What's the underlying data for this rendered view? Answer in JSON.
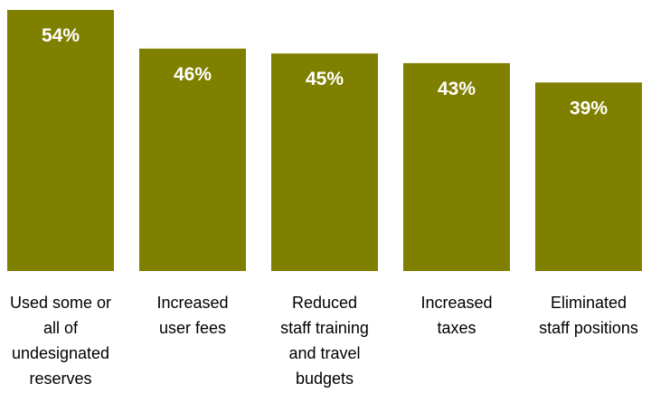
{
  "chart_data": {
    "type": "bar",
    "categories": [
      [
        "Used some or",
        "all of",
        "undesignated",
        "reserves"
      ],
      [
        "Increased",
        "user fees"
      ],
      [
        "Reduced",
        "staff training",
        "and travel",
        "budgets"
      ],
      [
        "Increased",
        "taxes"
      ],
      [
        "Eliminated",
        "staff positions"
      ]
    ],
    "values": [
      54,
      46,
      45,
      43,
      39
    ],
    "value_labels": [
      "54%",
      "46%",
      "45%",
      "43%",
      "39%"
    ],
    "unit": "%",
    "ylim": [
      0,
      54
    ],
    "grid": false,
    "legend": "none",
    "colors": {
      "bar": "#808000",
      "value_label": "#ffffff",
      "category_label": "#000000",
      "background": "#ffffff"
    }
  }
}
